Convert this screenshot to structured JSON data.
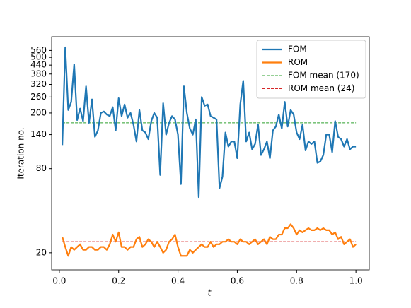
{
  "chart_data": {
    "type": "line",
    "xlabel": "t",
    "ylabel": "Iteration no.",
    "x": [
      0.01,
      0.02,
      0.03,
      0.04,
      0.05,
      0.06,
      0.07,
      0.08,
      0.09,
      0.1,
      0.11,
      0.12,
      0.13,
      0.14,
      0.15,
      0.16,
      0.17,
      0.18,
      0.19,
      0.2,
      0.21,
      0.22,
      0.23,
      0.24,
      0.25,
      0.26,
      0.27,
      0.28,
      0.29,
      0.3,
      0.31,
      0.32,
      0.33,
      0.34,
      0.35,
      0.36,
      0.37,
      0.38,
      0.39,
      0.4,
      0.41,
      0.42,
      0.43,
      0.44,
      0.45,
      0.46,
      0.47,
      0.48,
      0.49,
      0.5,
      0.51,
      0.52,
      0.53,
      0.54,
      0.55,
      0.56,
      0.57,
      0.58,
      0.59,
      0.6,
      0.61,
      0.62,
      0.63,
      0.64,
      0.65,
      0.66,
      0.67,
      0.68,
      0.69,
      0.7,
      0.71,
      0.72,
      0.73,
      0.74,
      0.75,
      0.76,
      0.77,
      0.78,
      0.79,
      0.8,
      0.81,
      0.82,
      0.83,
      0.84,
      0.85,
      0.86,
      0.87,
      0.88,
      0.89,
      0.9,
      0.91,
      0.92,
      0.93,
      0.94,
      0.95,
      0.96,
      0.97,
      0.98,
      0.99,
      1.0
    ],
    "series": [
      {
        "name": "FOM",
        "color": "#1f77b4",
        "values": [
          118,
          590,
          210,
          240,
          445,
          178,
          215,
          175,
          310,
          170,
          250,
          135,
          150,
          200,
          205,
          195,
          190,
          220,
          150,
          255,
          190,
          230,
          185,
          200,
          165,
          125,
          210,
          150,
          145,
          130,
          175,
          200,
          185,
          72,
          235,
          140,
          170,
          190,
          180,
          140,
          62,
          310,
          200,
          155,
          140,
          180,
          50,
          260,
          225,
          230,
          190,
          185,
          180,
          58,
          70,
          145,
          115,
          125,
          125,
          95,
          230,
          340,
          125,
          145,
          110,
          120,
          165,
          100,
          110,
          125,
          95,
          150,
          160,
          195,
          155,
          240,
          160,
          210,
          195,
          145,
          130,
          165,
          108,
          125,
          120,
          125,
          88,
          90,
          100,
          140,
          140,
          105,
          175,
          135,
          130,
          115,
          130,
          110,
          115,
          115
        ]
      },
      {
        "name": "ROM",
        "color": "#ff7f0e",
        "values": [
          26,
          22,
          19,
          22,
          21,
          22,
          23,
          21,
          21,
          22,
          22,
          21,
          21,
          22,
          22,
          21,
          23,
          27,
          24,
          28,
          22,
          22,
          21,
          22,
          22,
          25,
          26,
          22,
          23,
          25,
          24,
          22,
          24,
          22,
          20,
          21,
          24,
          25,
          27,
          22,
          19,
          19,
          19,
          21,
          20,
          21,
          22,
          23,
          22,
          22,
          24,
          22,
          23,
          23,
          24,
          24,
          25,
          24,
          24,
          23,
          25,
          24,
          24,
          23,
          24,
          25,
          23,
          24,
          25,
          23,
          26,
          25,
          25,
          27,
          27,
          30,
          30,
          32,
          30,
          27,
          29,
          28,
          29,
          30,
          29,
          29,
          30,
          29,
          30,
          29,
          29,
          27,
          28,
          25,
          26,
          23,
          24,
          25,
          22,
          23
        ]
      }
    ],
    "hlines": [
      {
        "name": "FOM mean (170)",
        "color": "#2ca02c",
        "value": 170
      },
      {
        "name": "ROM mean (24)",
        "color": "#d62728",
        "value": 24
      }
    ],
    "xlim": [
      -0.026,
      1.045
    ],
    "ylim": [
      15.1,
      702
    ],
    "log_y": true,
    "xticks": [
      {
        "value": 0,
        "label": "0.0"
      },
      0.2,
      0.4,
      0.6,
      0.8,
      {
        "value": 1,
        "label": "1.0"
      }
    ],
    "yticks": [
      20,
      80,
      140,
      200,
      260,
      320,
      380,
      440,
      500,
      560
    ],
    "legend": "upper right"
  }
}
